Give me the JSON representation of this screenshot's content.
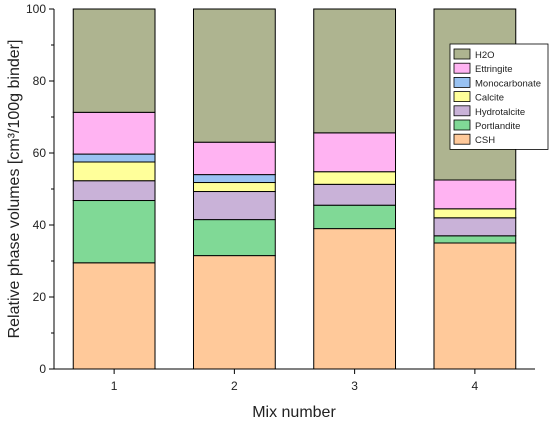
{
  "chart_data": {
    "type": "bar",
    "stacked": true,
    "categories": [
      "1",
      "2",
      "3",
      "4"
    ],
    "xlabel": "Mix number",
    "ylabel": "Relative phase volumes [cm³/100g binder]",
    "ylim": [
      0,
      100
    ],
    "yticks": [
      0,
      20,
      40,
      60,
      80,
      100
    ],
    "grid": false,
    "legend_position": "right",
    "series": [
      {
        "name": "CSH",
        "color": "#ffc99a",
        "values": [
          29.5,
          31.5,
          39.0,
          35.0
        ]
      },
      {
        "name": "Portlandite",
        "color": "#80d996",
        "values": [
          17.3,
          10.0,
          6.5,
          2.0
        ]
      },
      {
        "name": "Hydrotalcite",
        "color": "#c9b2d8",
        "values": [
          5.5,
          7.8,
          5.8,
          5.0
        ]
      },
      {
        "name": "Calcite",
        "color": "#ffff9a",
        "values": [
          5.2,
          2.5,
          3.5,
          2.5
        ]
      },
      {
        "name": "Monocarbonate",
        "color": "#99c2f2",
        "values": [
          2.2,
          2.2,
          0.0,
          0.0
        ]
      },
      {
        "name": "Ettringite",
        "color": "#ffb3f2",
        "values": [
          11.6,
          9.0,
          10.8,
          8.0
        ]
      },
      {
        "name": "H2O",
        "color": "#aeb490",
        "values": [
          28.7,
          37.0,
          34.4,
          47.5
        ]
      }
    ]
  }
}
